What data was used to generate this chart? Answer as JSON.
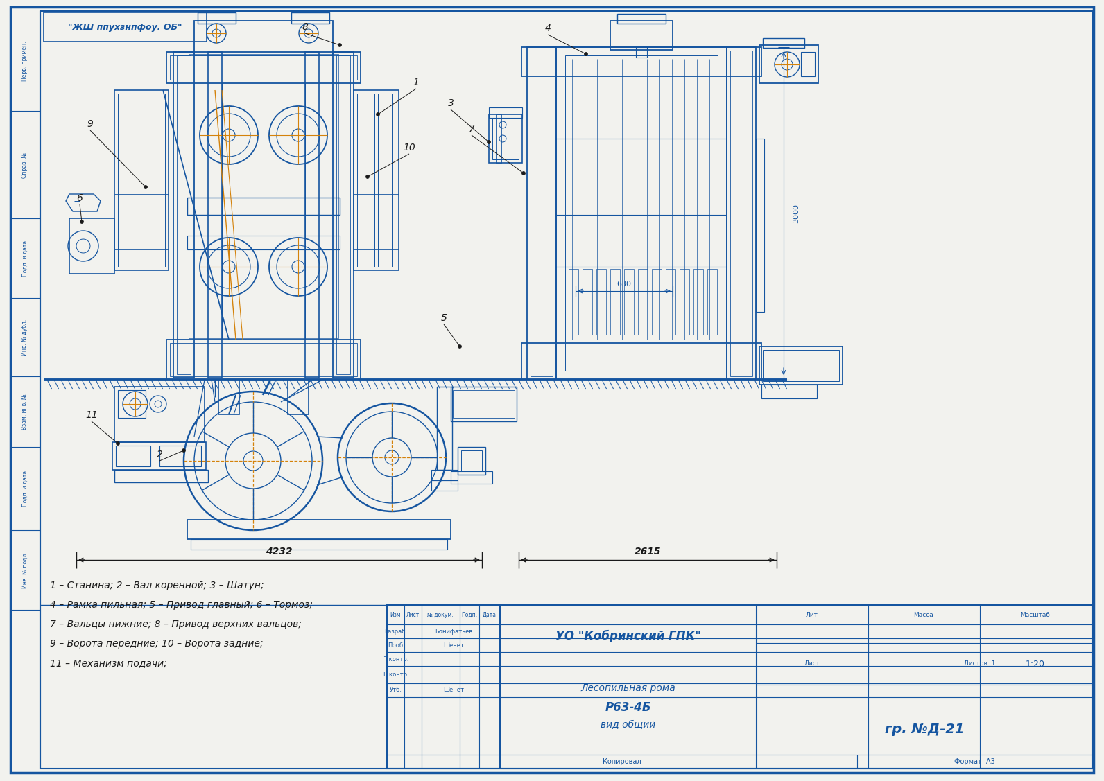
{
  "bg_color": "#f0f4f8",
  "border_color": "#1555a0",
  "drawing_color": "#1555a0",
  "orange_color": "#d4820a",
  "black_color": "#1a1a1a",
  "title_stamp": "УО \"Кобринский ГПК\"",
  "doc_name": "Лесопильная рома",
  "doc_code": "Р63-4Б",
  "doc_type": "вид общий",
  "scale": "1:20",
  "drawing_num": "гр. №Д-21",
  "copy_label": "Копировал",
  "format_label": "Формат  А3",
  "legend_lines": [
    "1 – Станина; 2 – Вал коренной; 3 – Шатун;",
    "4 – Рамка пильная; 5 – Привод главный; 6 – Тормоз;",
    "7 – Вальцы нижние; 8 – Привод верхних вальцов;",
    "9 – Ворота передние; 10 – Ворота задние;",
    "11 – Механизм подачи;"
  ],
  "dim_4232": "4232",
  "dim_2615": "2615",
  "dim_630": "630",
  "dim_3000": "3000",
  "stamp_company": "\"ЖШ ппухзнпфоу. ОБ\"",
  "left_labels": [
    "Перв. примен.",
    "Справ. №",
    "Подп. и дата",
    "Инв. № дубл.",
    "Взам. инв. №",
    "Подп. и дата",
    "Инв. № подл."
  ],
  "stamp_row_labels": [
    "Разраб.",
    "Проб.",
    "Т.контр.",
    "Н.контр.",
    "Утб."
  ],
  "stamp_row_names": [
    "Бонифатьев",
    "Шенет",
    "",
    "",
    "Шенет"
  ]
}
